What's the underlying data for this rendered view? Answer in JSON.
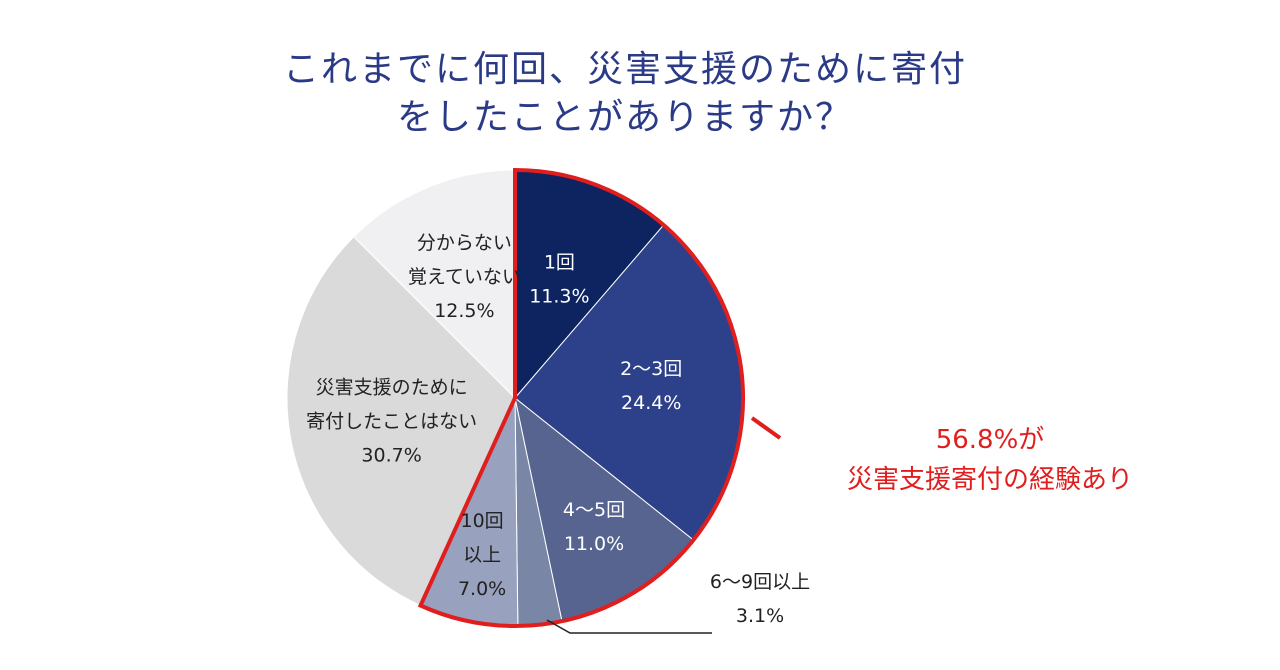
{
  "chart_data": {
    "type": "pie",
    "title_line1": "これまでに何回、災害支援のために寄付",
    "title_line2": "をしたことがありますか？",
    "slices": [
      {
        "label_lines": [
          "1回"
        ],
        "value": 11.3,
        "value_text": "11.3%",
        "color": "#0e2460",
        "text_color": "#ffffff"
      },
      {
        "label_lines": [
          "2〜3回"
        ],
        "value": 24.4,
        "value_text": "24.4%",
        "color": "#2d418a",
        "text_color": "#ffffff"
      },
      {
        "label_lines": [
          "4〜5回"
        ],
        "value": 11.0,
        "value_text": "11.0%",
        "color": "#56648f",
        "text_color": "#ffffff"
      },
      {
        "label_lines": [
          "6〜9回以上"
        ],
        "value": 3.1,
        "value_text": "3.1%",
        "color": "#7a86a6",
        "text_color": "#222222"
      },
      {
        "label_lines": [
          "10回",
          "以上"
        ],
        "value": 7.0,
        "value_text": "7.0%",
        "color": "#98a1bd",
        "text_color": "#222222"
      },
      {
        "label_lines": [
          "災害支援のために",
          "寄付したことはない"
        ],
        "value": 30.7,
        "value_text": "30.7%",
        "color": "#dadada",
        "text_color": "#222222"
      },
      {
        "label_lines": [
          "分からない",
          "覚えていない"
        ],
        "value": 12.5,
        "value_text": "12.5%",
        "color": "#f0f0f2",
        "text_color": "#222222"
      }
    ],
    "highlight": {
      "slices": [
        0,
        1,
        2,
        3,
        4
      ],
      "total_text": "56.8%が",
      "caption": "災害支援寄付の経験あり",
      "color": "#e01e1e"
    }
  }
}
